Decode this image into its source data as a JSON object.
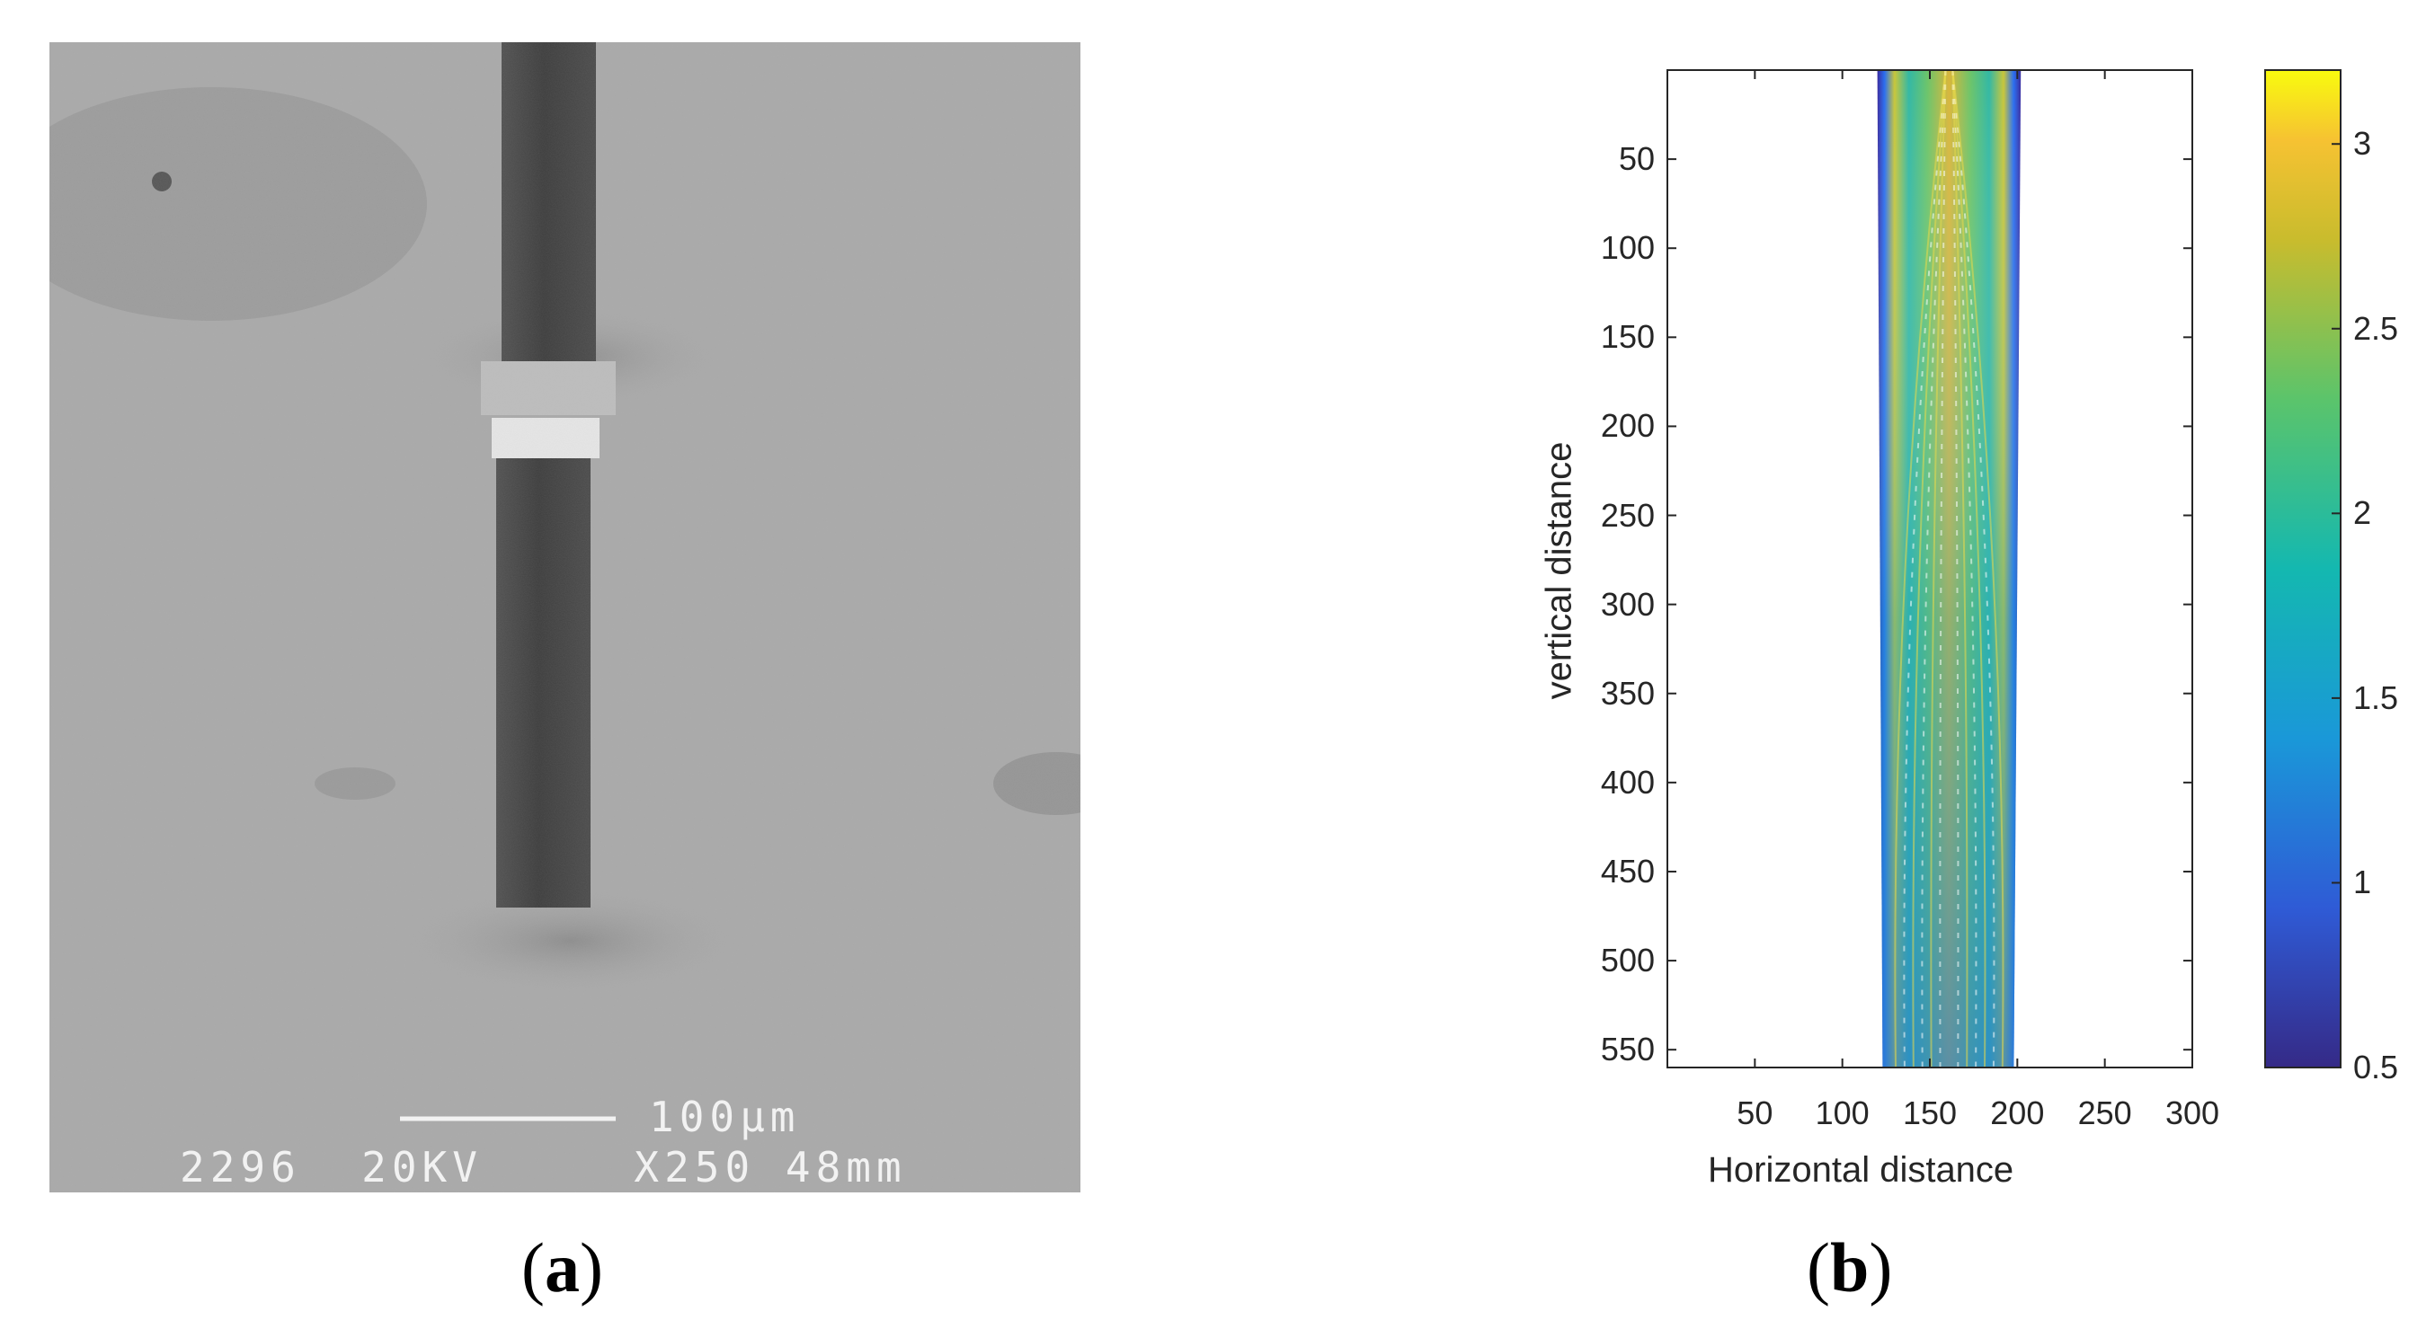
{
  "figure": {
    "panel_a": {
      "label_letter": "a",
      "scale_bar_label": "100µm",
      "info_line": "2296  20KV     X250 48mm"
    },
    "panel_b": {
      "label_letter": "b"
    }
  },
  "colors": {
    "sem_background": "#a8a8a8",
    "pillar": "#444444",
    "colormap": [
      "#3e26a8",
      "#2f6ff8",
      "#1fa9d8",
      "#2dc28e",
      "#a8c52b",
      "#f2b534",
      "#f9fb15"
    ]
  },
  "chart_data": {
    "type": "heatmap",
    "title": "",
    "xlabel": "Horizontal distance",
    "ylabel": "vertical distance",
    "xlim": [
      0,
      300
    ],
    "ylim": [
      560,
      0
    ],
    "x_ticks": [
      50,
      100,
      150,
      200,
      250,
      300
    ],
    "y_ticks": [
      50,
      100,
      150,
      200,
      250,
      300,
      350,
      400,
      450,
      500,
      550
    ],
    "y_reversed": true,
    "grid": false,
    "colorbar": {
      "min": 0.5,
      "max": 3.2,
      "ticks": [
        0.5,
        1,
        1.5,
        2,
        2.5,
        3
      ],
      "colormap": "parula"
    },
    "data_region": {
      "x_left_top": 120,
      "x_right_top": 202,
      "x_left_bottom": 123,
      "x_right_bottom": 198,
      "y_start": 0,
      "y_end": 560,
      "value_min": 0.5,
      "value_max": 3.2
    }
  }
}
